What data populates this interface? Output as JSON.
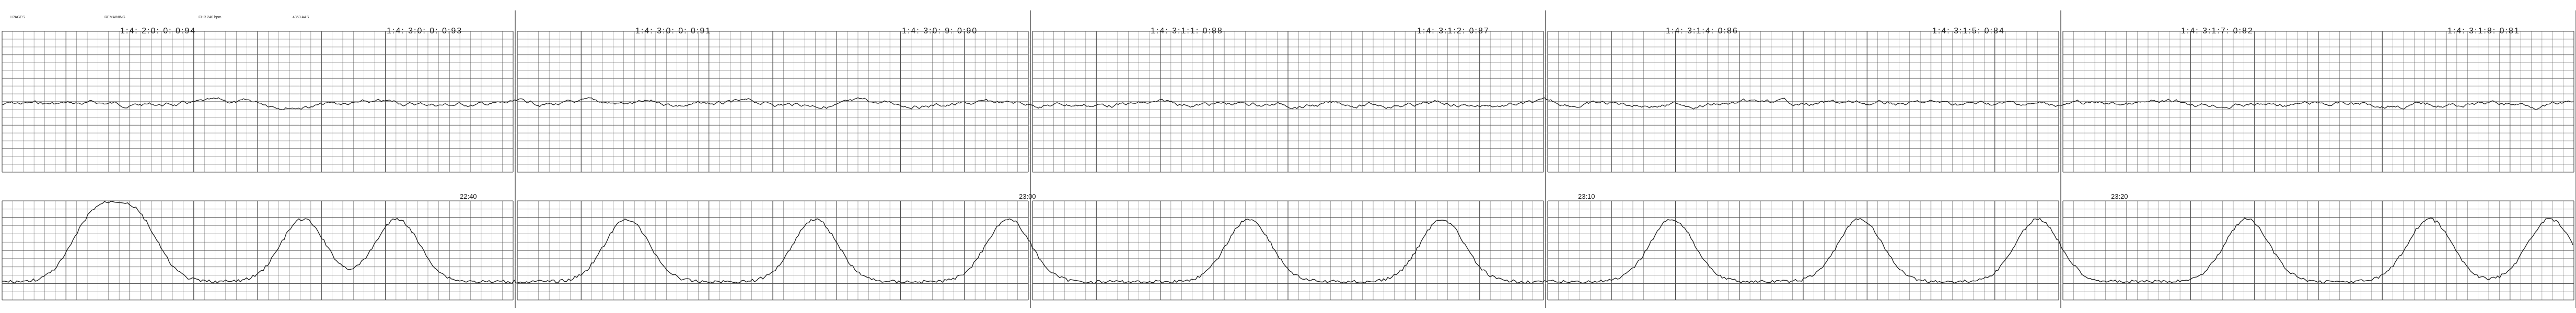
{
  "strip": {
    "panel_count": 5,
    "timestamps": [
      {
        "time": "22:40"
      },
      {
        "time": "23:00"
      },
      {
        "time": "23:10"
      },
      {
        "time": "23:20"
      }
    ],
    "header_notes": [
      {
        "text": "I PAGES"
      },
      {
        "text": "REMAINING"
      },
      {
        "text": "FHR 240 bpm"
      },
      {
        "text": "4353 AAS"
      }
    ],
    "panel_labels": [
      {
        "label": "1:4: 2:0: 0: 0:94",
        "panel": 0
      },
      {
        "label": "1:4: 3:0: 0: 0:93",
        "panel": 0
      },
      {
        "label": "1:4: 3:0: 0: 0:91",
        "panel": 1
      },
      {
        "label": "1:4: 3:0: 9: 0:90",
        "panel": 1
      },
      {
        "label": "1:4: 3:1:1: 0:88",
        "panel": 2
      },
      {
        "label": "1:4: 3:1:2: 0:87",
        "panel": 2
      },
      {
        "label": "1:4: 3:1:4: 0:86",
        "panel": 3
      },
      {
        "label": "1:4: 3:1:5: 0:84",
        "panel": 3
      },
      {
        "label": "1:4: 3:1:7: 0:82",
        "panel": 4
      },
      {
        "label": "1:4: 3:1:8: 0:81",
        "panel": 4
      }
    ],
    "colors": {
      "grid": "#4a4a4a",
      "trace": "#222222",
      "background": "#ffffff"
    }
  }
}
